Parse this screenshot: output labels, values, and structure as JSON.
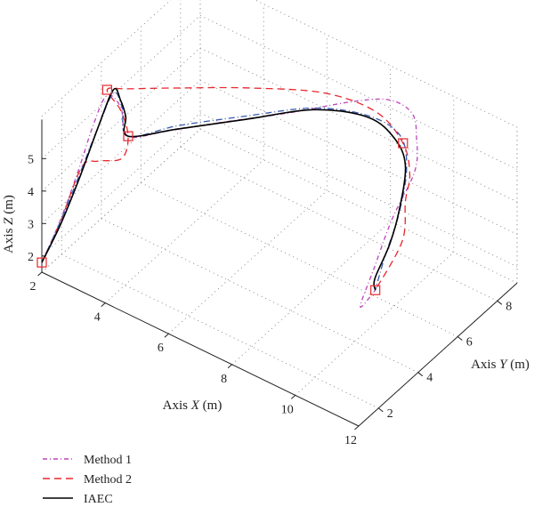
{
  "chart_data": {
    "type": "line3d",
    "axes": {
      "x": {
        "label_prefix": "Axis ",
        "label_var": "X",
        "label_suffix": " (m)",
        "range": [
          2,
          12
        ],
        "ticks": [
          2,
          4,
          6,
          8,
          10,
          12
        ]
      },
      "y": {
        "label_prefix": "Axis ",
        "label_var": "Y",
        "label_suffix": " (m)",
        "range": [
          1,
          9
        ],
        "ticks": [
          2,
          4,
          6,
          8
        ]
      },
      "z": {
        "label_prefix": "Axis ",
        "label_var": "Z",
        "label_suffix": " (m)",
        "range": [
          1.5,
          6.3
        ],
        "ticks": [
          2,
          3,
          4,
          5
        ]
      }
    },
    "grid": true,
    "legend_position": "bottom-left",
    "waypoints": [
      {
        "x": 2.0,
        "y": 1.0,
        "z": 1.8
      },
      {
        "x": 2.0,
        "y": 4.3,
        "z": 5.3
      },
      {
        "x": 2.6,
        "y": 4.4,
        "z": 4.1
      },
      {
        "x": 8.4,
        "y": 9.0,
        "z": 4.1
      },
      {
        "x": 9.4,
        "y": 6.0,
        "z": 1.7
      }
    ],
    "series": [
      {
        "name": "Method 1",
        "color": "#bb44bb",
        "dash": "5 3 1 3",
        "points": [
          {
            "x": 2.0,
            "y": 1.0,
            "z": 1.8
          },
          {
            "x": 2.05,
            "y": 1.8,
            "z": 2.6
          },
          {
            "x": 2.05,
            "y": 2.7,
            "z": 3.6
          },
          {
            "x": 2.0,
            "y": 3.6,
            "z": 4.6
          },
          {
            "x": 2.05,
            "y": 4.2,
            "z": 5.2
          },
          {
            "x": 2.3,
            "y": 4.5,
            "z": 4.8
          },
          {
            "x": 2.6,
            "y": 4.4,
            "z": 4.1
          },
          {
            "x": 3.4,
            "y": 5.0,
            "z": 4.3
          },
          {
            "x": 4.6,
            "y": 6.0,
            "z": 4.6
          },
          {
            "x": 6.0,
            "y": 7.2,
            "z": 4.9
          },
          {
            "x": 7.3,
            "y": 8.2,
            "z": 5.3
          },
          {
            "x": 8.1,
            "y": 8.8,
            "z": 5.4
          },
          {
            "x": 8.5,
            "y": 9.3,
            "z": 4.9
          },
          {
            "x": 8.7,
            "y": 9.2,
            "z": 4.3
          },
          {
            "x": 8.9,
            "y": 8.8,
            "z": 3.6
          },
          {
            "x": 8.8,
            "y": 7.8,
            "z": 2.6
          },
          {
            "x": 8.8,
            "y": 6.9,
            "z": 1.6
          },
          {
            "x": 8.8,
            "y": 6.2,
            "z": 0.8
          },
          {
            "x": 9.4,
            "y": 6.0,
            "z": 1.7
          }
        ]
      },
      {
        "name": "Method 2",
        "color": "#e8262e",
        "dash": "8 5",
        "points": [
          {
            "x": 2.0,
            "y": 1.0,
            "z": 1.8
          },
          {
            "x": 2.1,
            "y": 1.8,
            "z": 2.7
          },
          {
            "x": 2.2,
            "y": 2.7,
            "z": 3.9
          },
          {
            "x": 2.4,
            "y": 3.2,
            "z": 3.9
          },
          {
            "x": 2.9,
            "y": 3.6,
            "z": 4.0
          },
          {
            "x": 2.6,
            "y": 4.4,
            "z": 4.1
          },
          {
            "x": 2.3,
            "y": 4.5,
            "z": 4.7
          },
          {
            "x": 2.0,
            "y": 4.3,
            "z": 5.3
          },
          {
            "x": 2.4,
            "y": 4.7,
            "z": 5.3
          },
          {
            "x": 3.6,
            "y": 5.6,
            "z": 5.4
          },
          {
            "x": 5.0,
            "y": 6.8,
            "z": 5.4
          },
          {
            "x": 6.6,
            "y": 7.9,
            "z": 5.4
          },
          {
            "x": 7.8,
            "y": 8.6,
            "z": 5.0
          },
          {
            "x": 8.4,
            "y": 9.0,
            "z": 4.1
          },
          {
            "x": 8.8,
            "y": 8.7,
            "z": 3.5
          },
          {
            "x": 9.1,
            "y": 8.0,
            "z": 3.2
          },
          {
            "x": 9.5,
            "y": 7.2,
            "z": 2.6
          },
          {
            "x": 9.4,
            "y": 6.0,
            "z": 1.7
          }
        ]
      },
      {
        "name": "IAEC",
        "color": "#000000",
        "dash": "",
        "points": [
          {
            "x": 2.0,
            "y": 1.0,
            "z": 1.8
          },
          {
            "x": 2.1,
            "y": 1.8,
            "z": 2.6
          },
          {
            "x": 2.15,
            "y": 2.7,
            "z": 3.6
          },
          {
            "x": 2.15,
            "y": 3.6,
            "z": 4.6
          },
          {
            "x": 2.2,
            "y": 4.3,
            "z": 5.4
          },
          {
            "x": 2.3,
            "y": 4.5,
            "z": 5.0
          },
          {
            "x": 2.4,
            "y": 4.6,
            "z": 4.5
          },
          {
            "x": 2.6,
            "y": 4.4,
            "z": 4.1
          },
          {
            "x": 3.6,
            "y": 5.3,
            "z": 4.3
          },
          {
            "x": 5.0,
            "y": 6.5,
            "z": 4.6
          },
          {
            "x": 6.4,
            "y": 7.7,
            "z": 4.9
          },
          {
            "x": 7.6,
            "y": 8.5,
            "z": 4.8
          },
          {
            "x": 8.2,
            "y": 8.9,
            "z": 4.2
          },
          {
            "x": 8.6,
            "y": 8.8,
            "z": 3.6
          },
          {
            "x": 8.9,
            "y": 8.0,
            "z": 2.8
          },
          {
            "x": 9.1,
            "y": 7.2,
            "z": 2.3
          },
          {
            "x": 9.2,
            "y": 6.3,
            "z": 1.8
          },
          {
            "x": 9.4,
            "y": 6.0,
            "z": 1.7
          }
        ]
      },
      {
        "name": "",
        "color": "#3a5ab0",
        "dash": "7 3 1 3",
        "points": [
          {
            "x": 2.0,
            "y": 1.0,
            "z": 1.8
          },
          {
            "x": 2.1,
            "y": 1.8,
            "z": 2.7
          },
          {
            "x": 2.15,
            "y": 2.7,
            "z": 3.7
          },
          {
            "x": 2.15,
            "y": 3.6,
            "z": 4.6
          },
          {
            "x": 2.2,
            "y": 4.3,
            "z": 5.3
          },
          {
            "x": 2.35,
            "y": 4.5,
            "z": 4.8
          },
          {
            "x": 2.6,
            "y": 4.4,
            "z": 4.1
          },
          {
            "x": 3.6,
            "y": 5.3,
            "z": 4.4
          },
          {
            "x": 5.0,
            "y": 6.5,
            "z": 4.7
          },
          {
            "x": 6.4,
            "y": 7.7,
            "z": 4.95
          },
          {
            "x": 7.6,
            "y": 8.5,
            "z": 4.85
          },
          {
            "x": 8.3,
            "y": 9.0,
            "z": 4.3
          },
          {
            "x": 8.7,
            "y": 8.7,
            "z": 3.6
          },
          {
            "x": 9.0,
            "y": 7.8,
            "z": 2.8
          },
          {
            "x": 9.2,
            "y": 6.8,
            "z": 2.2
          },
          {
            "x": 9.4,
            "y": 6.0,
            "z": 1.7
          }
        ]
      }
    ],
    "legend": [
      {
        "label": "Method 1",
        "color": "#bb44bb",
        "dash": "5 3 1 3"
      },
      {
        "label": "Method 2",
        "color": "#e8262e",
        "dash": "8 5"
      },
      {
        "label": "IAEC",
        "color": "#000000",
        "dash": ""
      }
    ]
  }
}
